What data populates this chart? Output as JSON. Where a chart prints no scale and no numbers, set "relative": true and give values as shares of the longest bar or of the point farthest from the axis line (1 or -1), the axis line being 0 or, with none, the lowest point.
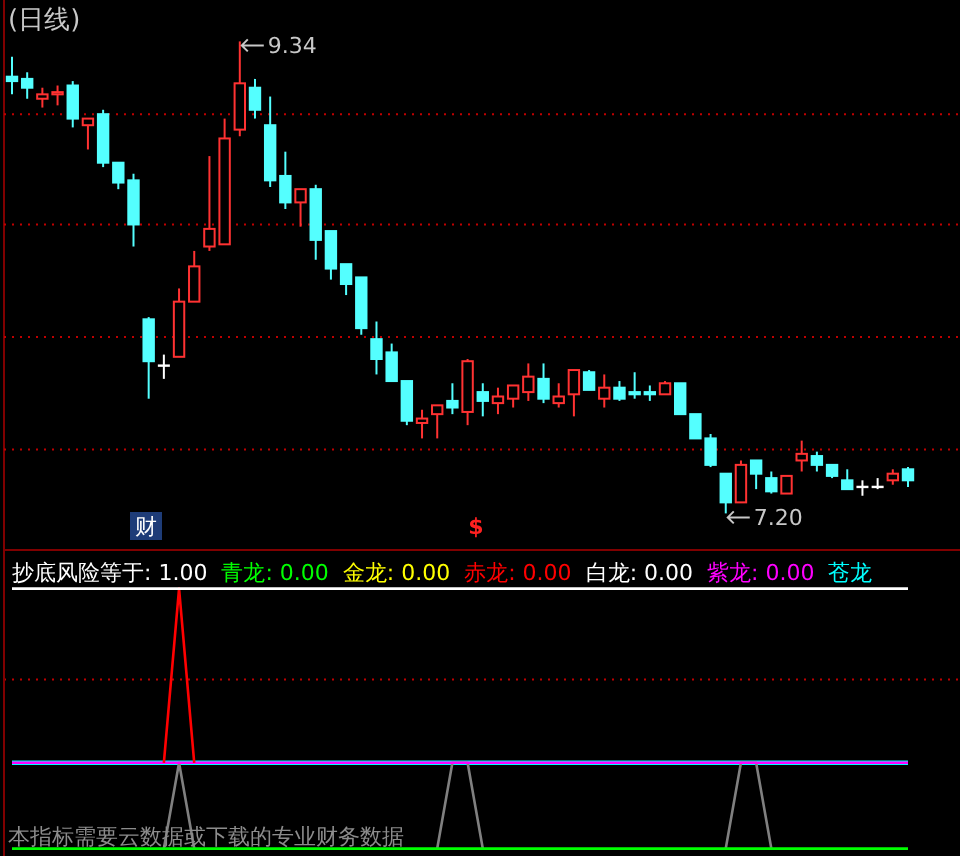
{
  "chart_data": [
    {
      "type": "candlestick",
      "title": "(日线)",
      "ref_lines": [
        {
          "axis": "y",
          "value": 9.01,
          "color": "#c00000",
          "line_style": "dotted"
        },
        {
          "axis": "y",
          "value": 8.51,
          "color": "#c00000",
          "line_style": "dotted"
        },
        {
          "axis": "y",
          "value": 8.0,
          "color": "#c00000",
          "line_style": "dotted"
        },
        {
          "axis": "y",
          "value": 7.49,
          "color": "#c00000",
          "line_style": "dotted"
        }
      ],
      "categories": [
        null,
        null,
        null,
        null,
        null,
        null,
        null,
        null,
        null,
        null,
        null,
        null,
        null,
        null,
        null,
        null,
        null,
        null,
        null,
        null,
        null,
        null,
        null,
        null,
        null,
        null,
        null,
        null,
        null,
        null,
        null,
        null,
        null,
        null,
        null,
        null,
        null,
        null,
        null,
        null,
        null,
        null,
        null,
        null,
        null,
        null,
        null,
        null,
        null,
        null,
        null,
        null,
        null,
        null,
        null,
        null,
        null,
        null,
        null,
        null
      ],
      "ohlc": [
        [
          9.18,
          9.27,
          9.1,
          9.16
        ],
        [
          9.17,
          9.2,
          9.08,
          9.13
        ],
        [
          9.08,
          9.13,
          9.04,
          9.1
        ],
        [
          9.1,
          9.14,
          9.05,
          9.11
        ],
        [
          9.14,
          9.16,
          8.95,
          8.99
        ],
        [
          8.96,
          8.99,
          8.85,
          8.99
        ],
        [
          9.01,
          9.03,
          8.77,
          8.79
        ],
        [
          8.79,
          8.79,
          8.67,
          8.7
        ],
        [
          8.71,
          8.74,
          8.41,
          8.51
        ],
        [
          8.08,
          8.09,
          7.72,
          7.89
        ],
        [
          7.87,
          7.92,
          7.81,
          7.87
        ],
        [
          7.91,
          8.22,
          7.91,
          8.16
        ],
        [
          8.16,
          8.39,
          8.16,
          8.32
        ],
        [
          8.41,
          8.82,
          8.39,
          8.49
        ],
        [
          8.42,
          8.99,
          8.42,
          8.9
        ],
        [
          8.94,
          9.34,
          8.91,
          9.15
        ],
        [
          9.13,
          9.17,
          8.99,
          9.03
        ],
        [
          8.96,
          9.09,
          8.68,
          8.71
        ],
        [
          8.73,
          8.84,
          8.58,
          8.61
        ],
        [
          8.61,
          8.67,
          8.5,
          8.67
        ],
        [
          8.67,
          8.69,
          8.35,
          8.44
        ],
        [
          8.48,
          8.48,
          8.26,
          8.31
        ],
        [
          8.33,
          8.33,
          8.19,
          8.24
        ],
        [
          8.27,
          8.27,
          8.01,
          8.04
        ],
        [
          7.99,
          8.07,
          7.83,
          7.9
        ],
        [
          7.93,
          7.97,
          7.8,
          7.8
        ],
        [
          7.8,
          7.8,
          7.6,
          7.62
        ],
        [
          7.61,
          7.67,
          7.54,
          7.63
        ],
        [
          7.65,
          7.69,
          7.54,
          7.69
        ],
        [
          7.71,
          7.79,
          7.65,
          7.68
        ],
        [
          7.66,
          7.9,
          7.6,
          7.89
        ],
        [
          7.75,
          7.79,
          7.64,
          7.71
        ],
        [
          7.7,
          7.77,
          7.65,
          7.73
        ],
        [
          7.72,
          7.78,
          7.68,
          7.78
        ],
        [
          7.75,
          7.88,
          7.71,
          7.82
        ],
        [
          7.81,
          7.88,
          7.7,
          7.72
        ],
        [
          7.7,
          7.79,
          7.68,
          7.73
        ],
        [
          7.74,
          7.85,
          7.64,
          7.85
        ],
        [
          7.84,
          7.85,
          7.76,
          7.76
        ],
        [
          7.72,
          7.83,
          7.68,
          7.77
        ],
        [
          7.77,
          7.8,
          7.71,
          7.72
        ],
        [
          7.75,
          7.84,
          7.72,
          7.74
        ],
        [
          7.75,
          7.78,
          7.71,
          7.74
        ],
        [
          7.74,
          7.8,
          7.74,
          7.79
        ],
        [
          7.79,
          7.79,
          7.65,
          7.65
        ],
        [
          7.65,
          7.65,
          7.54,
          7.54
        ],
        [
          7.54,
          7.56,
          7.41,
          7.42
        ],
        [
          7.38,
          7.38,
          7.2,
          7.25
        ],
        [
          7.25,
          7.44,
          7.25,
          7.42
        ],
        [
          7.44,
          7.44,
          7.31,
          7.38
        ],
        [
          7.36,
          7.39,
          7.29,
          7.3
        ],
        [
          7.29,
          7.37,
          7.29,
          7.37
        ],
        [
          7.44,
          7.53,
          7.39,
          7.47
        ],
        [
          7.46,
          7.48,
          7.39,
          7.42
        ],
        [
          7.42,
          7.42,
          7.36,
          7.37
        ],
        [
          7.35,
          7.4,
          7.31,
          7.31
        ],
        [
          7.32,
          7.35,
          7.28,
          7.32
        ],
        [
          7.32,
          7.36,
          7.31,
          7.32
        ],
        [
          7.35,
          7.4,
          7.33,
          7.38
        ],
        [
          7.4,
          7.41,
          7.32,
          7.35
        ]
      ],
      "colors": [
        "#54ffff",
        "#54ffff",
        "#ff3232",
        "#ff3232",
        "#54ffff",
        "#ff3232",
        "#54ffff",
        "#54ffff",
        "#54ffff",
        "#54ffff",
        "#ffffff",
        "#ff3232",
        "#ff3232",
        "#ff3232",
        "#ff3232",
        "#ff3232",
        "#54ffff",
        "#54ffff",
        "#54ffff",
        "#ff3232",
        "#54ffff",
        "#54ffff",
        "#54ffff",
        "#54ffff",
        "#54ffff",
        "#54ffff",
        "#54ffff",
        "#ff3232",
        "#ff3232",
        "#54ffff",
        "#ff3232",
        "#54ffff",
        "#ff3232",
        "#ff3232",
        "#ff3232",
        "#54ffff",
        "#ff3232",
        "#ff3232",
        "#54ffff",
        "#ff3232",
        "#54ffff",
        "#54ffff",
        "#54ffff",
        "#ff3232",
        "#54ffff",
        "#54ffff",
        "#54ffff",
        "#54ffff",
        "#ff3232",
        "#54ffff",
        "#54ffff",
        "#ff3232",
        "#ff3232",
        "#54ffff",
        "#54ffff",
        "#54ffff",
        "#ffffff",
        "#ffffff",
        "#ff3232",
        "#54ffff"
      ],
      "annotations": [
        "9.34",
        "7.20",
        "财",
        "$"
      ]
    },
    {
      "type": "line",
      "relative": true,
      "legend": "top",
      "ref_lines": [
        {
          "axis": "y",
          "value": 0.65,
          "color": "#c00000",
          "line_style": "dotted"
        }
      ],
      "categories": [
        null,
        null,
        null,
        null,
        null,
        null,
        null,
        null,
        null,
        null,
        null,
        null,
        null,
        null,
        null,
        null,
        null,
        null,
        null,
        null,
        null,
        null,
        null,
        null,
        null,
        null,
        null,
        null,
        null,
        null,
        null,
        null,
        null,
        null,
        null,
        null,
        null,
        null,
        null,
        null,
        null,
        null,
        null,
        null,
        null,
        null,
        null,
        null,
        null,
        null,
        null,
        null,
        null,
        null,
        null,
        null,
        null,
        null,
        null,
        null
      ],
      "series": [
        {
          "name": "抄底风险等于: 1.00",
          "color": "#ffffff",
          "values": [
            1,
            1,
            1,
            1,
            1,
            1,
            1,
            1,
            1,
            1,
            1,
            1,
            1,
            1,
            1,
            1,
            1,
            1,
            1,
            1,
            1,
            1,
            1,
            1,
            1,
            1,
            1,
            1,
            1,
            1,
            1,
            1,
            1,
            1,
            1,
            1,
            1,
            1,
            1,
            1,
            1,
            1,
            1,
            1,
            1,
            1,
            1,
            1,
            1,
            1,
            1,
            1,
            1,
            1,
            1,
            1,
            1,
            1,
            1,
            1
          ]
        },
        {
          "name": "青龙: 0.00",
          "color": "#00ff00",
          "values": [
            0,
            0,
            0,
            0,
            0,
            0,
            0,
            0,
            0,
            0,
            0,
            0,
            0,
            0,
            0,
            0,
            0,
            0,
            0,
            0,
            0,
            0,
            0,
            0,
            0,
            0,
            0,
            0,
            0,
            0,
            0,
            0,
            0,
            0,
            0,
            0,
            0,
            0,
            0,
            0,
            0,
            0,
            0,
            0,
            0,
            0,
            0,
            0,
            0,
            0,
            0,
            0,
            0,
            0,
            0,
            0,
            0,
            0,
            0,
            0
          ]
        },
        {
          "name": "金龙: 0.00",
          "color": "#ffff00",
          "values": [
            null,
            null,
            null,
            null,
            null,
            null,
            null,
            null,
            null,
            null,
            null,
            null,
            null,
            null,
            null,
            null,
            null,
            null,
            null,
            null,
            null,
            null,
            null,
            null,
            null,
            null,
            null,
            null,
            null,
            null,
            null,
            null,
            null,
            null,
            null,
            null,
            null,
            null,
            null,
            null,
            null,
            null,
            null,
            null,
            null,
            null,
            null,
            null,
            null,
            null,
            null,
            null,
            null,
            null,
            null,
            null,
            null,
            null,
            null,
            null
          ]
        },
        {
          "name": "赤龙: 0.00",
          "color": "#ff0000",
          "values": [
            null,
            null,
            null,
            null,
            null,
            null,
            null,
            null,
            null,
            null,
            0.33,
            1,
            0.33,
            null,
            null,
            null,
            null,
            null,
            null,
            null,
            null,
            null,
            null,
            null,
            null,
            null,
            null,
            null,
            null,
            null,
            null,
            null,
            null,
            null,
            null,
            null,
            null,
            null,
            null,
            null,
            null,
            null,
            null,
            null,
            null,
            null,
            null,
            null,
            null,
            null,
            null,
            null,
            null,
            null,
            null,
            null,
            null,
            null,
            null,
            null
          ]
        },
        {
          "name": "白龙: 0.00",
          "color": "#ffffff",
          "values": [
            null,
            null,
            null,
            null,
            null,
            null,
            null,
            null,
            null,
            null,
            null,
            null,
            null,
            null,
            null,
            null,
            null,
            null,
            null,
            null,
            null,
            null,
            null,
            null,
            null,
            null,
            null,
            null,
            null,
            null,
            null,
            null,
            null,
            null,
            null,
            null,
            null,
            null,
            null,
            null,
            null,
            null,
            null,
            null,
            null,
            null,
            null,
            null,
            null,
            null,
            null,
            null,
            null,
            null,
            null,
            null,
            null,
            null,
            null,
            null
          ]
        },
        {
          "name": "紫龙: 0.00",
          "color": "#ff00ff",
          "values": [
            0.33,
            0.33,
            0.33,
            0.33,
            0.33,
            0.33,
            0.33,
            0.33,
            0.33,
            0.33,
            0.33,
            0.33,
            0.33,
            0.33,
            0.33,
            0.33,
            0.33,
            0.33,
            0.33,
            0.33,
            0.33,
            0.33,
            0.33,
            0.33,
            0.33,
            0.33,
            0.33,
            0.33,
            0.33,
            0.33,
            0.33,
            0.33,
            0.33,
            0.33,
            0.33,
            0.33,
            0.33,
            0.33,
            0.33,
            0.33,
            0.33,
            0.33,
            0.33,
            0.33,
            0.33,
            0.33,
            0.33,
            0.33,
            0.33,
            0.33,
            0.33,
            0.33,
            0.33,
            0.33,
            0.33,
            0.33,
            0.33,
            0.33,
            0.33,
            0.33
          ]
        },
        {
          "color": "#808080",
          "values": [
            null,
            null,
            null,
            null,
            null,
            null,
            null,
            null,
            null,
            null,
            0,
            0.33,
            0,
            null,
            null,
            null,
            null,
            null,
            null,
            null,
            null,
            null,
            null,
            null,
            null,
            null,
            null,
            null,
            0,
            0.33,
            0.33,
            0,
            null,
            null,
            null,
            null,
            null,
            null,
            null,
            null,
            null,
            null,
            null,
            null,
            null,
            null,
            null,
            0,
            0.33,
            0.33,
            0,
            null,
            null,
            null,
            null,
            null,
            null,
            null,
            null,
            null
          ]
        },
        {
          "name": "苍龙",
          "color": "#00ffff",
          "values": [
            0.33,
            0.33,
            0.33,
            0.33,
            0.33,
            0.33,
            0.33,
            0.33,
            0.33,
            0.33,
            0.33,
            0.33,
            0.33,
            0.33,
            0.33,
            0.33,
            0.33,
            0.33,
            0.33,
            0.33,
            0.33,
            0.33,
            0.33,
            0.33,
            0.33,
            0.33,
            0.33,
            0.33,
            0.33,
            0.33,
            0.33,
            0.33,
            0.33,
            0.33,
            0.33,
            0.33,
            0.33,
            0.33,
            0.33,
            0.33,
            0.33,
            0.33,
            0.33,
            0.33,
            0.33,
            0.33,
            0.33,
            0.33,
            0.33,
            0.33,
            0.33,
            0.33,
            0.33,
            0.33,
            0.33,
            0.33,
            0.33,
            0.33,
            0.33,
            0.33
          ]
        }
      ],
      "annotations": [
        "本指标需要云数据或下载的专业财务数据"
      ]
    }
  ]
}
